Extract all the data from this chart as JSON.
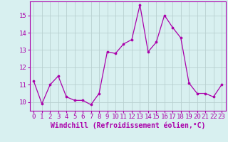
{
  "x": [
    0,
    1,
    2,
    3,
    4,
    5,
    6,
    7,
    8,
    9,
    10,
    11,
    12,
    13,
    14,
    15,
    16,
    17,
    18,
    19,
    20,
    21,
    22,
    23
  ],
  "y": [
    11.2,
    9.9,
    11.0,
    11.5,
    10.3,
    10.1,
    10.1,
    9.85,
    10.5,
    12.9,
    12.8,
    13.35,
    13.6,
    15.6,
    12.9,
    13.45,
    15.0,
    14.3,
    13.7,
    11.1,
    10.5,
    10.5,
    10.3,
    11.0
  ],
  "line_color": "#aa00aa",
  "marker": "o",
  "marker_size": 2.2,
  "bg_color": "#d8f0f0",
  "grid_color": "#b8d0d0",
  "xlabel": "Windchill (Refroidissement éolien,°C)",
  "ylim": [
    9.5,
    15.8
  ],
  "xlim": [
    -0.5,
    23.5
  ],
  "yticks": [
    10,
    11,
    12,
    13,
    14,
    15
  ],
  "xticks": [
    0,
    1,
    2,
    3,
    4,
    5,
    6,
    7,
    8,
    9,
    10,
    11,
    12,
    13,
    14,
    15,
    16,
    17,
    18,
    19,
    20,
    21,
    22,
    23
  ],
  "xtick_labels": [
    "0",
    "1",
    "2",
    "3",
    "4",
    "5",
    "6",
    "7",
    "8",
    "9",
    "10",
    "11",
    "12",
    "13",
    "14",
    "15",
    "16",
    "17",
    "18",
    "19",
    "20",
    "21",
    "22",
    "23"
  ],
  "tick_color": "#aa00aa",
  "label_color": "#aa00aa",
  "xlabel_fontsize": 7,
  "tick_fontsize": 6.5
}
